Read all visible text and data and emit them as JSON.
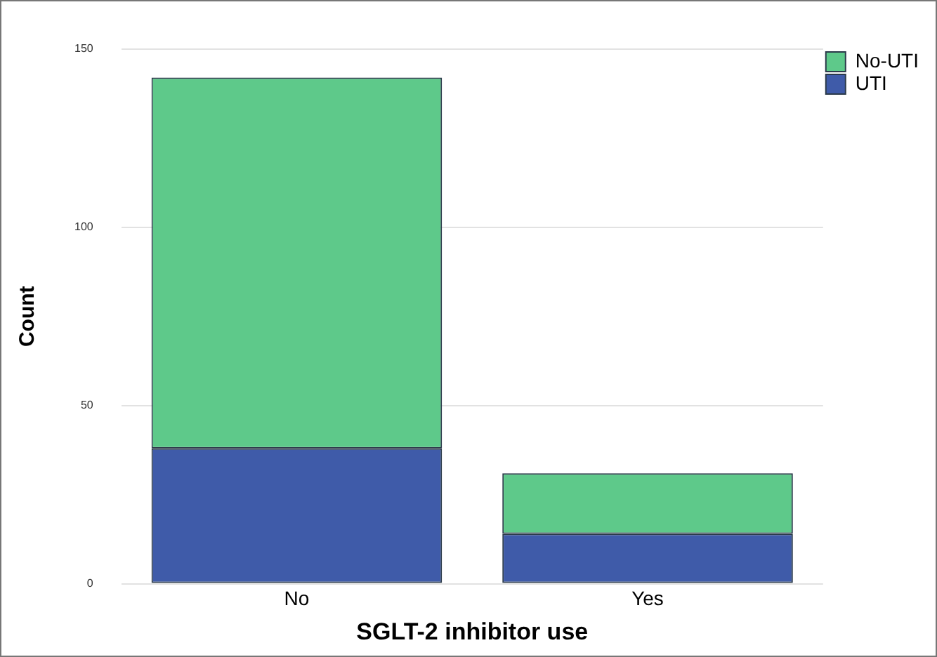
{
  "chart_data": {
    "type": "bar",
    "xlabel": "SGLT-2 inhibitor use",
    "ylabel": "Count",
    "categories": [
      "No",
      "Yes"
    ],
    "series": [
      {
        "name": "UTI",
        "color": "#3f5ba9",
        "values": [
          38,
          14
        ]
      },
      {
        "name": "No-UTI",
        "color": "#5ec98a",
        "values": [
          104,
          17
        ]
      }
    ],
    "stacked": true,
    "ylim": [
      0,
      150
    ],
    "yticks": [
      0,
      50,
      100,
      150
    ],
    "grid": "y",
    "legend": "top right"
  }
}
